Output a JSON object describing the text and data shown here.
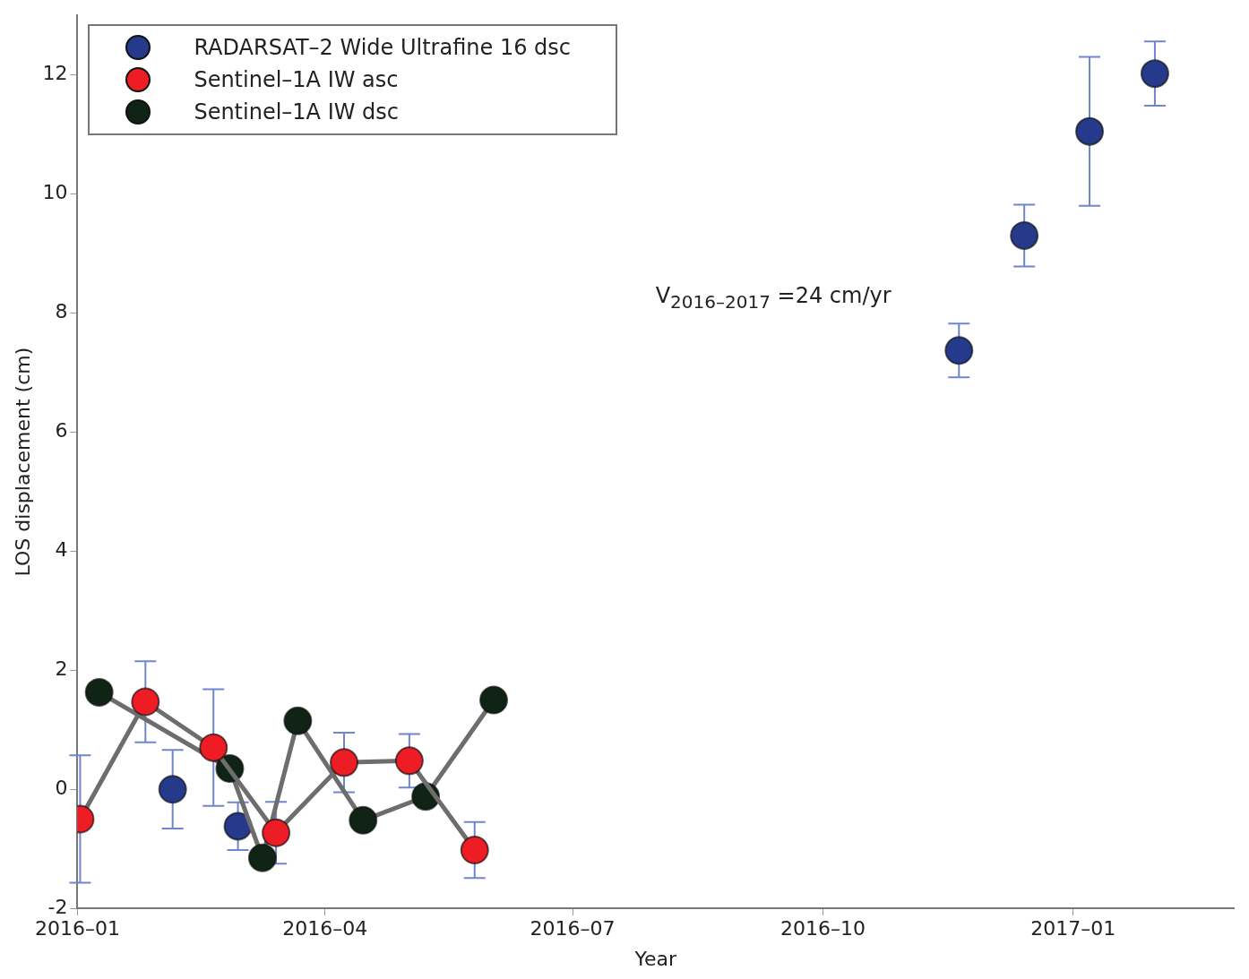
{
  "chart_data": {
    "type": "scatter",
    "xlabel": "Year",
    "ylabel": "LOS displacement (cm)",
    "xlim": [
      "2016-01-01",
      "2017-03-01"
    ],
    "xticks": [
      {
        "value": "2016-01-01",
        "label": "2016–01"
      },
      {
        "value": "2016-04-01",
        "label": "2016–04"
      },
      {
        "value": "2016-07-01",
        "label": "2016–07"
      },
      {
        "value": "2016-10-01",
        "label": "2016–10"
      },
      {
        "value": "2017-01-01",
        "label": "2017–01"
      }
    ],
    "ylim": [
      -2,
      13
    ],
    "yticks": [
      -2,
      0,
      2,
      4,
      6,
      8,
      10,
      12
    ],
    "grid": false,
    "legend": "top left",
    "marker": "circle",
    "annotations": [
      "V$_{2016–2017}$ =24 cm/yr"
    ],
    "series": [
      {
        "name": "RADARSAT–2 Wide Ultrafine 16 dsc",
        "color": "#253a8a",
        "x": [
          "2016-02-05",
          "2016-02-29",
          "2016-11-20",
          "2016-12-14",
          "2017-01-07",
          "2017-01-31"
        ],
        "values": [
          0.0,
          -0.62,
          7.37,
          9.3,
          11.05,
          12.02
        ],
        "errors": [
          0.66,
          0.4,
          0.45,
          0.52,
          1.25,
          0.54
        ]
      },
      {
        "name": "Sentinel–1A IW asc",
        "type": "line",
        "color": "#ee1c25",
        "x": [
          "2016-01-02",
          "2016-01-26",
          "2016-02-20",
          "2016-03-14",
          "2016-04-08",
          "2016-05-02",
          "2016-05-26"
        ],
        "values": [
          -0.5,
          1.47,
          0.7,
          -0.73,
          0.45,
          0.48,
          -1.02
        ],
        "errors": [
          1.07,
          0.68,
          0.98,
          0.52,
          0.5,
          0.45,
          0.47
        ]
      },
      {
        "name": "Sentinel–1A IW dsc",
        "type": "line",
        "color": "#0f2414",
        "x": [
          "2016-01-09",
          "2016-02-26",
          "2016-03-09",
          "2016-03-22",
          "2016-04-15",
          "2016-05-08",
          "2016-06-02"
        ],
        "values": [
          1.63,
          0.35,
          -1.15,
          1.15,
          -0.52,
          -0.12,
          1.5
        ]
      }
    ]
  }
}
